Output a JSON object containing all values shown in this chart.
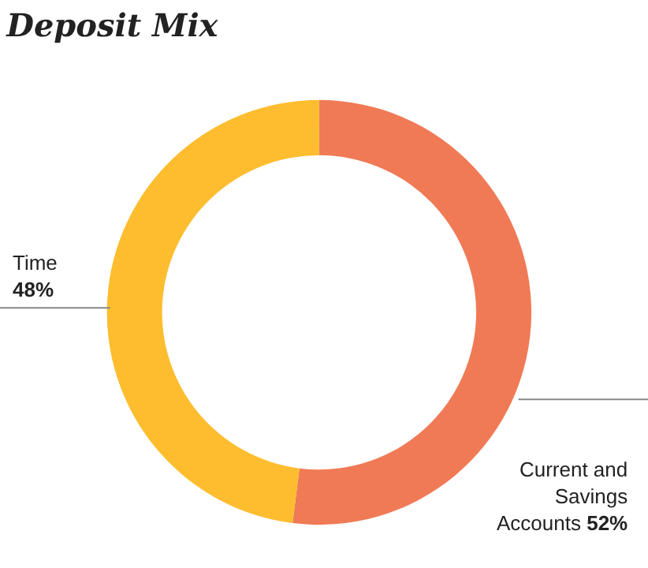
{
  "chart_data": {
    "type": "donut",
    "title": "Deposit Mix",
    "categories": [
      "Current and Savings Accounts",
      "Time"
    ],
    "values": [
      52,
      48
    ],
    "value_labels": [
      "52%",
      "48%"
    ],
    "colors": [
      "#f07a55",
      "#fdbd2e"
    ],
    "legend": false
  }
}
